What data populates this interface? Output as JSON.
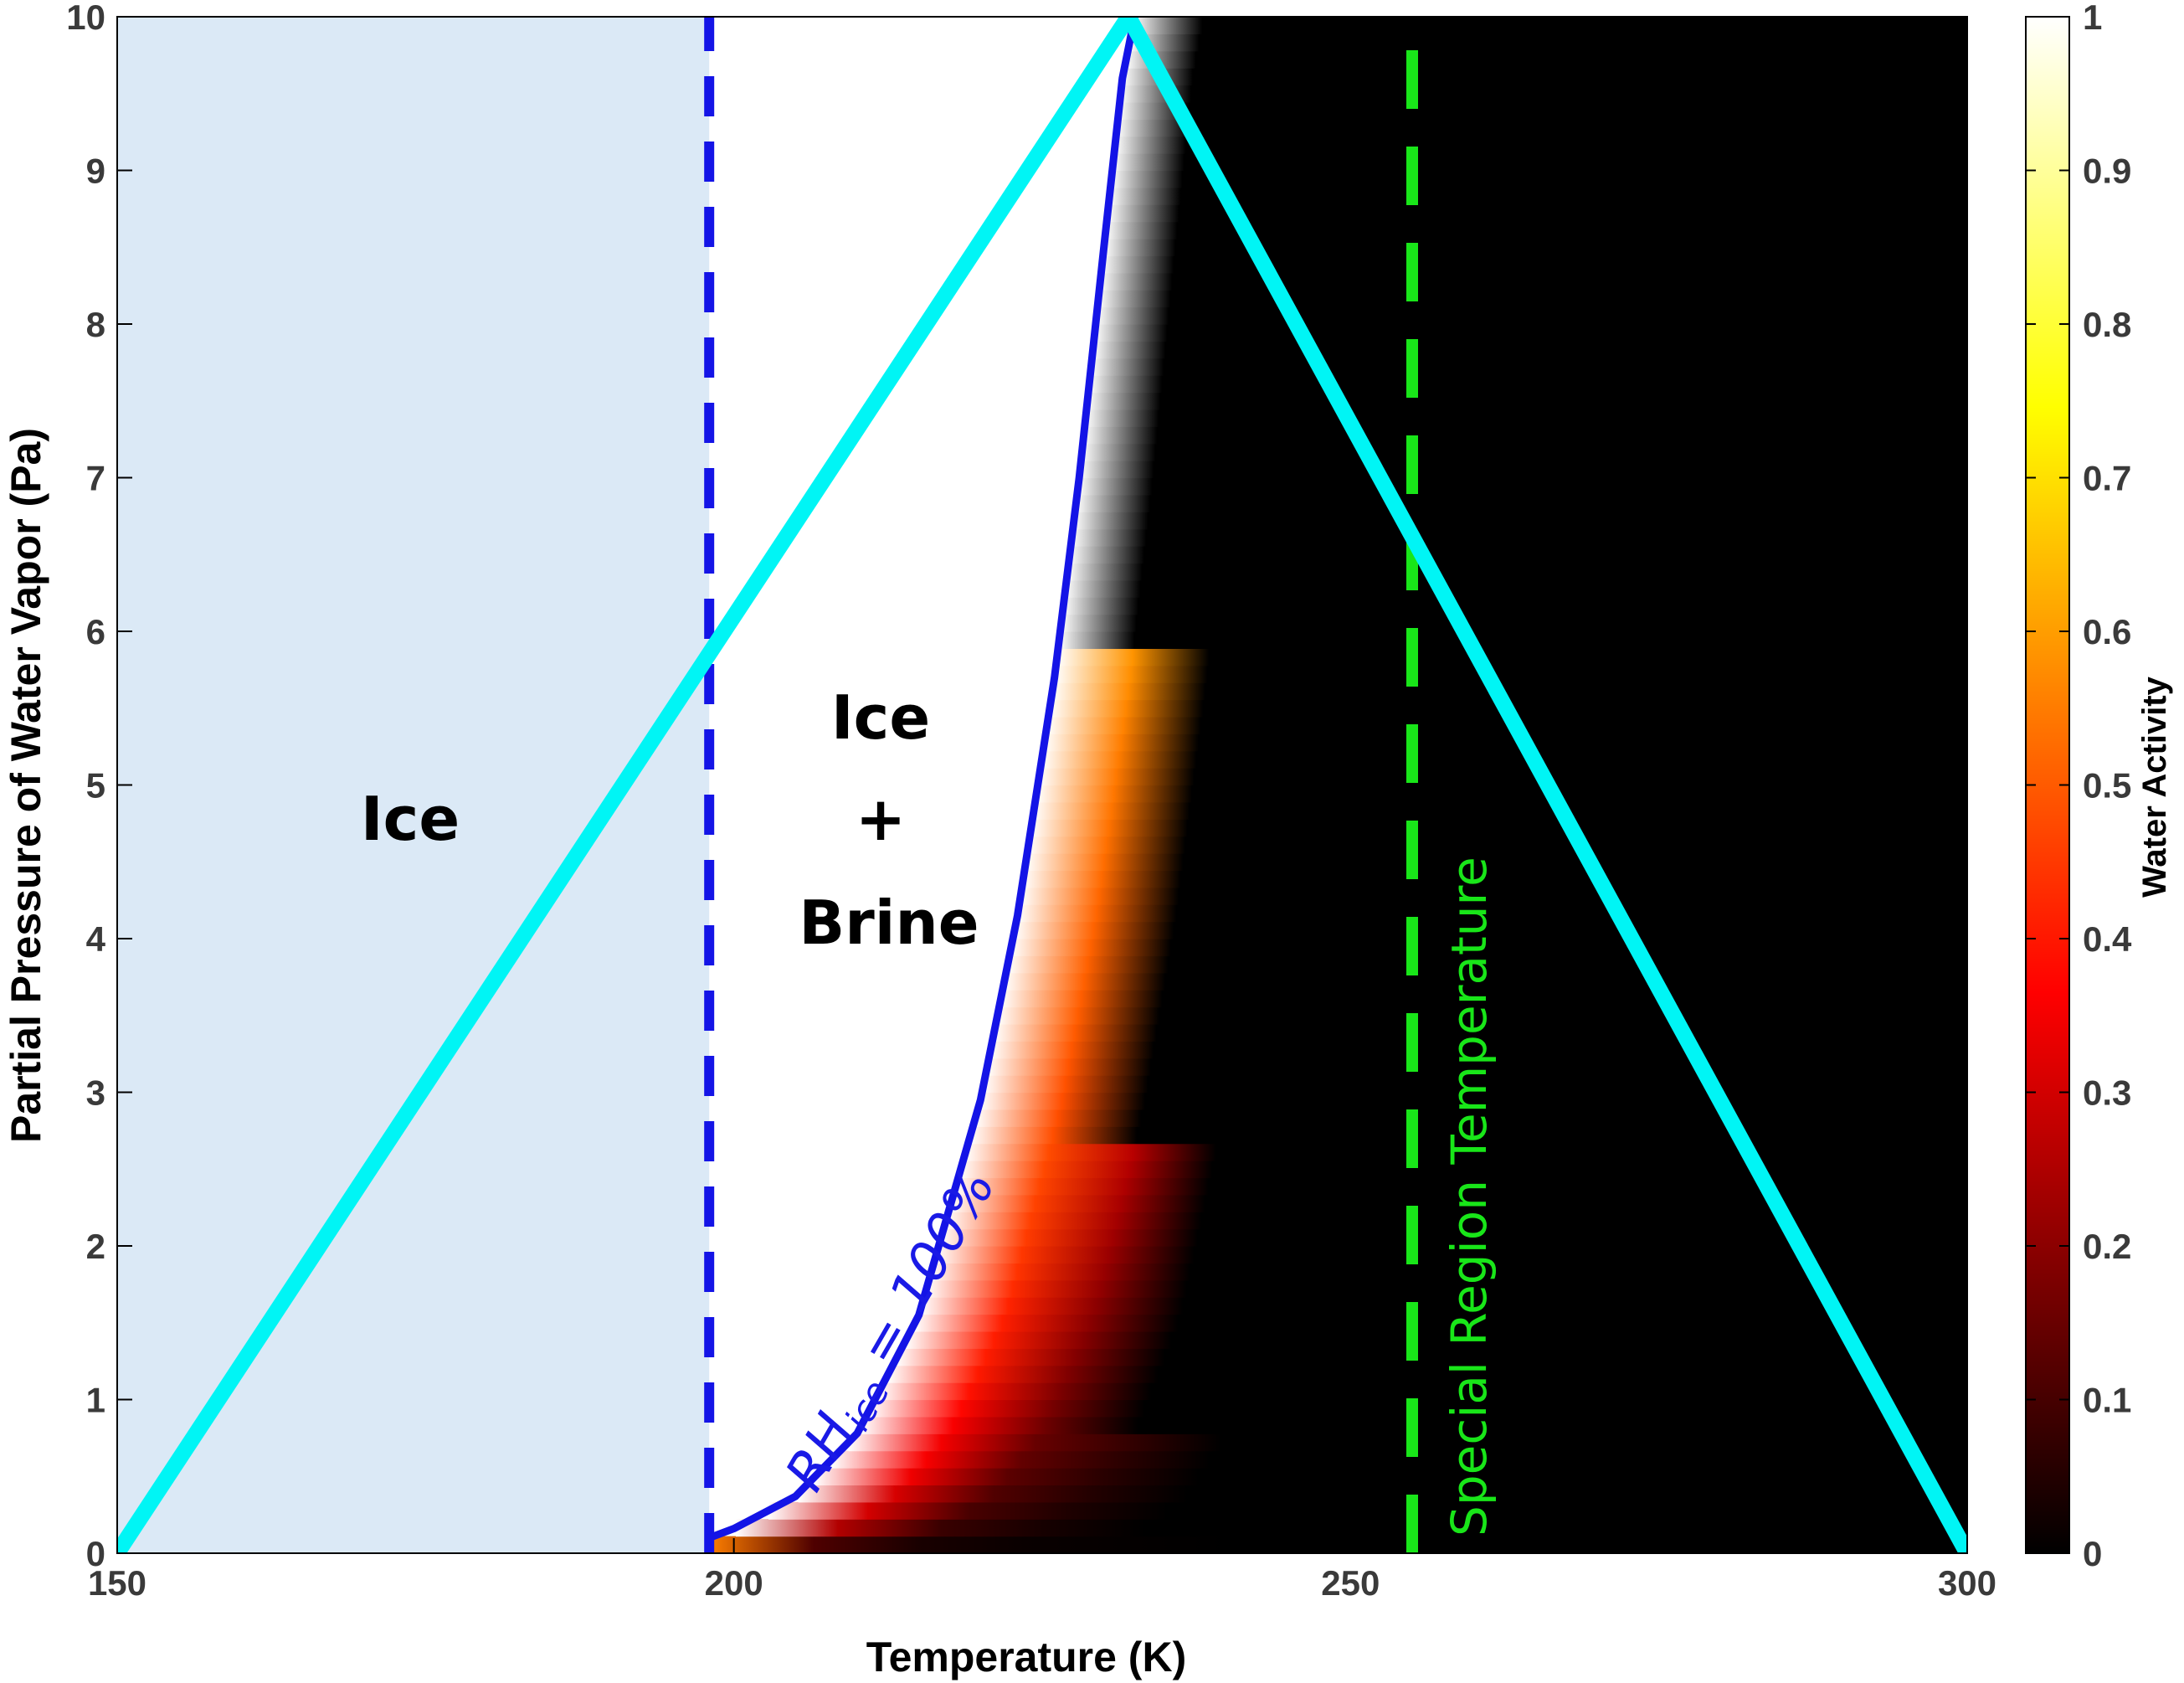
{
  "chart_data": {
    "type": "heatmap",
    "title": "",
    "xlabel": "Temperature (K)",
    "ylabel": "Partial Pressure of Water Vapor (Pa)",
    "xlim": [
      150,
      300
    ],
    "ylim": [
      0,
      10
    ],
    "xticks": [
      "150",
      "200",
      "250",
      "300"
    ],
    "yticks": [
      "0",
      "1",
      "2",
      "3",
      "4",
      "5",
      "6",
      "7",
      "8",
      "9",
      "10"
    ],
    "colorbar": {
      "label": "Water Activity",
      "range": [
        0,
        1
      ],
      "ticks": [
        "0",
        "0.1",
        "0.2",
        "0.3",
        "0.4",
        "0.5",
        "0.6",
        "0.7",
        "0.8",
        "0.9",
        "1"
      ],
      "colormap": "hot"
    },
    "regions": {
      "ice_label": "Ice",
      "ice_brine_top": "Ice",
      "ice_brine_plus": "+",
      "ice_brine_bottom": "Brine"
    },
    "annotations": {
      "rh_ice_prefix": "RH",
      "rh_ice_sub": "ice",
      "rh_ice_suffix": " = 100%",
      "special_region": "Special Region Temperature"
    },
    "lines": [
      {
        "name": "eutectic boundary",
        "style": "dashed",
        "color": "#1414e6",
        "x": [
          198,
          198
        ],
        "y": [
          0,
          10
        ]
      },
      {
        "name": "RH_ice = 100%",
        "style": "solid",
        "color": "#1414e6",
        "x": [
          198,
          200,
          205,
          210,
          215,
          220,
          223,
          226,
          228,
          230,
          231.5,
          232.5
        ],
        "y": [
          0.1,
          0.16,
          0.37,
          0.78,
          1.55,
          2.95,
          4.15,
          5.7,
          7.0,
          8.5,
          9.6,
          10
        ]
      },
      {
        "name": "special region temperature",
        "style": "dashed",
        "color": "#19e619",
        "x": [
          255,
          255
        ],
        "y": [
          0,
          10
        ]
      },
      {
        "name": "triangle",
        "style": "solid",
        "color": "#00f5f5",
        "x": [
          150,
          232,
          300
        ],
        "y": [
          0,
          10,
          0
        ]
      }
    ],
    "colors": {
      "ice_fill": "#dbe9f6",
      "rh_line": "#1414e6",
      "special_line": "#19e619",
      "triangle": "#00f5f5"
    }
  }
}
